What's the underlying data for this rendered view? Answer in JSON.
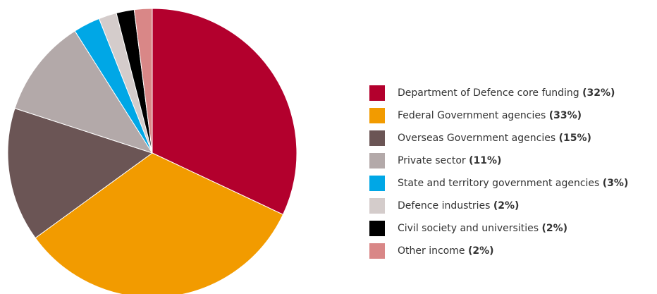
{
  "chart_data": {
    "type": "pie",
    "slices": [
      {
        "label": "Department of Defence core funding",
        "pct_text": "(32%)",
        "value": 32,
        "color": "#b3002d"
      },
      {
        "label": "Federal Government agencies",
        "pct_text": "(33%)",
        "value": 33,
        "color": "#f29b00"
      },
      {
        "label": "Overseas Government agencies",
        "pct_text": "(15%)",
        "value": 15,
        "color": "#6b5555"
      },
      {
        "label": "Private sector",
        "pct_text": "(11%)",
        "value": 11,
        "color": "#b3a9a9"
      },
      {
        "label": "State and territory government agencies",
        "pct_text": "(3%)",
        "value": 3,
        "color": "#00a7e6"
      },
      {
        "label": "Defence industries",
        "pct_text": "(2%)",
        "value": 2,
        "color": "#d4cccb"
      },
      {
        "label": "Civil society and universities",
        "pct_text": "(2%)",
        "value": 2,
        "color": "#000000"
      },
      {
        "label": "Other income",
        "pct_text": "(2%)",
        "value": 2,
        "color": "#d98787"
      }
    ],
    "legend_position": "right"
  }
}
